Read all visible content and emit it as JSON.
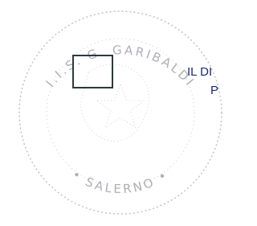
{
  "stamp": {
    "top_text": "I.I.S. G. GARIBALDI",
    "bottom_text": "• SALERNO •"
  },
  "signature_lines": [
    "IL DI",
    "P"
  ]
}
